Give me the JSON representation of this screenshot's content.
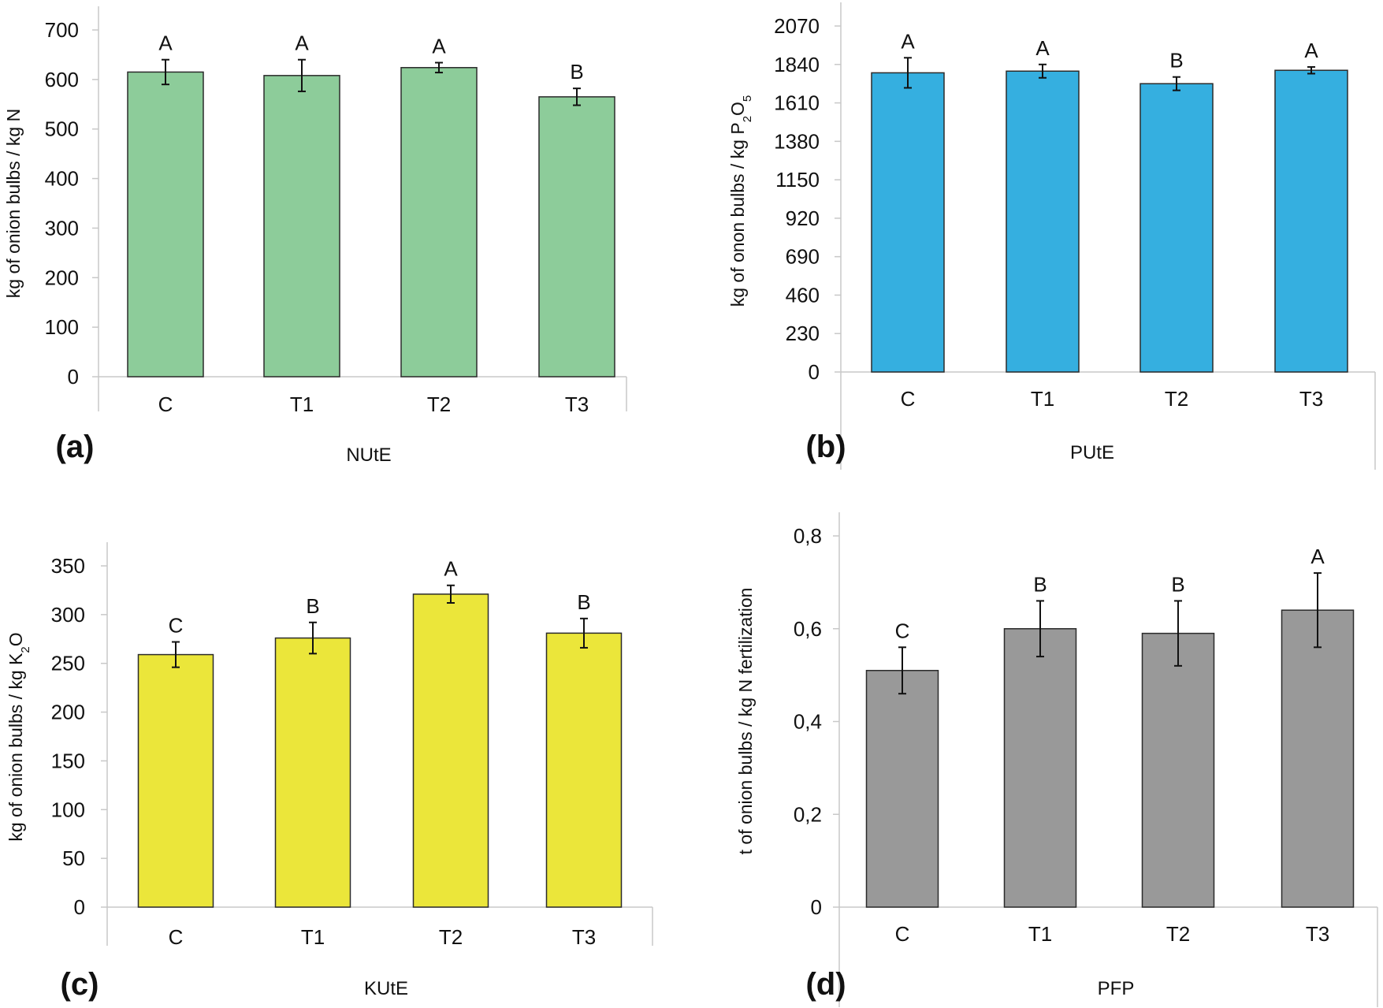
{
  "chart_data": [
    {
      "panel": "(a)",
      "type": "bar",
      "title": "",
      "xlabel": "NUtE",
      "ylabel": "kg of onion bulbs / kg N",
      "ylabel_parts": [
        {
          "t": "kg of onion bulbs / kg N"
        }
      ],
      "categories": [
        "C",
        "T1",
        "T2",
        "T3"
      ],
      "values": [
        615,
        608,
        624,
        565
      ],
      "errors": [
        25,
        32,
        10,
        17
      ],
      "letters": [
        "A",
        "A",
        "A",
        "B"
      ],
      "ylim": [
        0,
        700
      ],
      "yticks": [
        0,
        100,
        200,
        300,
        400,
        500,
        600,
        700
      ],
      "ytick_labels": [
        "0",
        "100",
        "200",
        "300",
        "400",
        "500",
        "600",
        "700"
      ],
      "color": "#8dcc9a",
      "grid": false
    },
    {
      "panel": "(b)",
      "type": "bar",
      "title": "",
      "xlabel": "PUtE",
      "ylabel": "kg of onon bulbs / kg P2O5",
      "ylabel_parts": [
        {
          "t": "kg of onon bulbs / kg P"
        },
        {
          "t": "2",
          "sub": true
        },
        {
          "t": "O"
        },
        {
          "t": "5",
          "sub": true
        }
      ],
      "categories": [
        "C",
        "T1",
        "T2",
        "T3"
      ],
      "values": [
        1790,
        1800,
        1725,
        1805
      ],
      "errors": [
        90,
        40,
        40,
        20
      ],
      "letters": [
        "A",
        "A",
        "B",
        "A"
      ],
      "ylim": [
        0,
        2070
      ],
      "yticks": [
        0,
        230,
        460,
        690,
        920,
        1150,
        1380,
        1610,
        1840,
        2070
      ],
      "ytick_labels": [
        "0",
        "230",
        "460",
        "690",
        "920",
        "1150",
        "1380",
        "1610",
        "1840",
        "2070"
      ],
      "color": "#35afe0",
      "grid": false
    },
    {
      "panel": "(c)",
      "type": "bar",
      "title": "",
      "xlabel": "KUtE",
      "ylabel": "kg of onion bulbs / kg K2O",
      "ylabel_parts": [
        {
          "t": "kg of onion bulbs / kg K"
        },
        {
          "t": "2",
          "sub": true
        },
        {
          "t": "O"
        }
      ],
      "categories": [
        "C",
        "T1",
        "T2",
        "T3"
      ],
      "values": [
        259,
        276,
        321,
        281
      ],
      "errors": [
        13,
        16,
        9,
        15
      ],
      "letters": [
        "C",
        "B",
        "A",
        "B"
      ],
      "ylim": [
        0,
        350
      ],
      "yticks": [
        0,
        50,
        100,
        150,
        200,
        250,
        300,
        350
      ],
      "ytick_labels": [
        "0",
        "50",
        "100",
        "150",
        "200",
        "250",
        "300",
        "350"
      ],
      "color": "#ebe63a",
      "grid": false
    },
    {
      "panel": "(d)",
      "type": "bar",
      "title": "",
      "xlabel": "PFP",
      "ylabel": "t of onion bulbs / kg N fertilization",
      "ylabel_parts": [
        {
          "t": "t of onion bulbs / kg N fertilization"
        }
      ],
      "categories": [
        "C",
        "T1",
        "T2",
        "T3"
      ],
      "values": [
        0.51,
        0.6,
        0.59,
        0.64
      ],
      "errors": [
        0.05,
        0.06,
        0.07,
        0.08
      ],
      "letters": [
        "C",
        "B",
        "B",
        "A"
      ],
      "ylim": [
        0,
        0.8
      ],
      "yticks": [
        0,
        0.2,
        0.4,
        0.6,
        0.8
      ],
      "ytick_labels": [
        "0",
        "0,2",
        "0,4",
        "0,6",
        "0,8"
      ],
      "color": "#999999",
      "grid": false
    }
  ]
}
